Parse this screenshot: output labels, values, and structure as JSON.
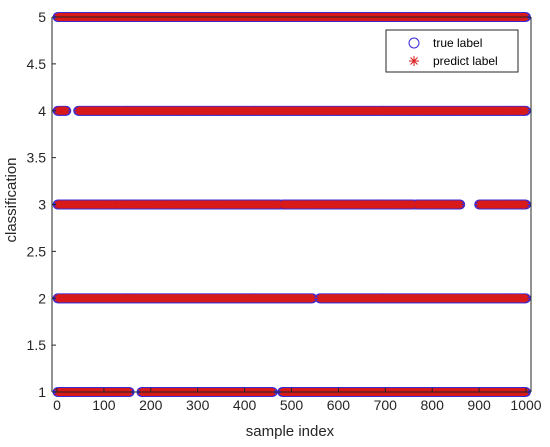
{
  "chart_data": {
    "type": "scatter",
    "title": "",
    "xlabel": "sample index",
    "ylabel": "classification",
    "xlim": [
      0,
      1000
    ],
    "ylim": [
      1,
      5
    ],
    "xticks": [
      "0",
      "100",
      "200",
      "300",
      "400",
      "500",
      "600",
      "700",
      "800",
      "900",
      "1000"
    ],
    "yticks": [
      "1",
      "1.5",
      "2",
      "2.5",
      "3",
      "3.5",
      "4",
      "4.5",
      "5"
    ],
    "grid": false,
    "legend_position": "top-right",
    "series": [
      {
        "name": "true label",
        "marker": "circle",
        "color": "#3b2bd6",
        "classes": [
          1,
          2,
          3,
          4,
          5
        ],
        "x_ranges_per_class": {
          "1": [
            [
              0,
              155
            ],
            [
              180,
              460
            ],
            [
              480,
              1000
            ]
          ],
          "2": [
            [
              0,
              545
            ],
            [
              560,
              1000
            ]
          ],
          "3": [
            [
              0,
              475
            ],
            [
              480,
              760
            ],
            [
              765,
              860
            ],
            [
              900,
              1000
            ]
          ],
          "4": [
            [
              0,
              20
            ],
            [
              45,
              1000
            ]
          ],
          "5": [
            [
              0,
              1000
            ]
          ]
        }
      },
      {
        "name": "predict label",
        "marker": "asterisk",
        "color": "#d81b1b",
        "classes": [
          1,
          2,
          3,
          4,
          5
        ],
        "x_ranges_per_class": {
          "1": [
            [
              0,
              155
            ],
            [
              180,
              460
            ],
            [
              480,
              1000
            ]
          ],
          "2": [
            [
              0,
              545
            ],
            [
              560,
              1000
            ]
          ],
          "3": [
            [
              0,
              475
            ],
            [
              480,
              760
            ],
            [
              765,
              860
            ],
            [
              900,
              1000
            ]
          ],
          "4": [
            [
              0,
              20
            ],
            [
              45,
              1000
            ]
          ],
          "5": [
            [
              0,
              1000
            ]
          ]
        }
      }
    ]
  },
  "legend": {
    "true_label": "true label",
    "predict_label": "predict label"
  },
  "colors": {
    "axis": "#262626",
    "true_marker": "#3b2bd6",
    "predict_marker": "#d81b1b"
  }
}
